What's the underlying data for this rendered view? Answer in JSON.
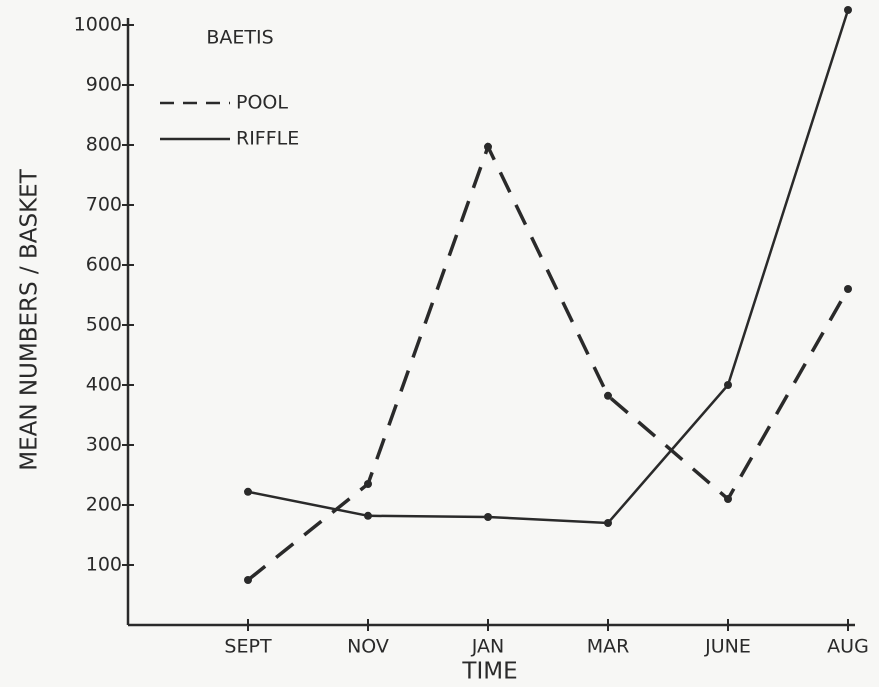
{
  "chart_data": {
    "type": "line",
    "title": "BAETIS",
    "x_label": "TIME",
    "y_label": "MEAN NUMBERS / BASKET",
    "categories": [
      "SEPT",
      "NOV",
      "JAN",
      "MAR",
      "JUNE",
      "AUG"
    ],
    "series": [
      {
        "name": "POOL",
        "color": "#2a2a2a",
        "style": "dashed",
        "values": [
          75,
          235,
          797,
          382,
          210,
          560
        ]
      },
      {
        "name": "RIFFLE",
        "color": "#2a2a2a",
        "style": "solid",
        "values": [
          222,
          182,
          180,
          170,
          400,
          1025
        ]
      }
    ],
    "ylim": [
      0,
      1000
    ],
    "yticks": [
      100,
      200,
      300,
      400,
      500,
      600,
      700,
      800,
      900,
      1000
    ],
    "grid": false,
    "legend": "upper left"
  }
}
